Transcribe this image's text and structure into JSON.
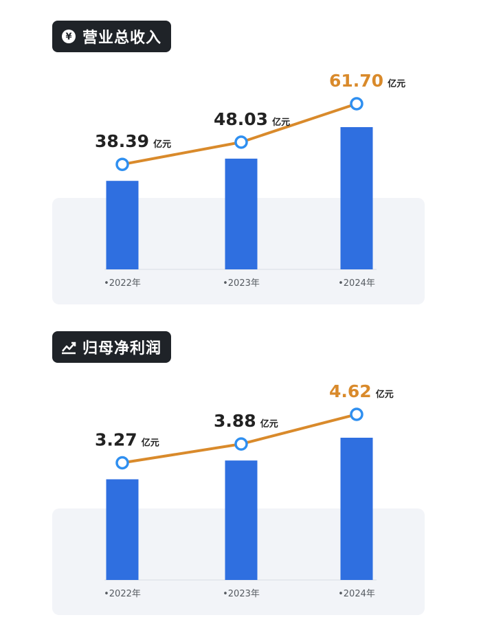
{
  "chart_data": [
    {
      "type": "bar",
      "title": "营业总收入",
      "title_icon": "yen-icon",
      "categories": [
        "2022年",
        "2023年",
        "2024年"
      ],
      "tick_labels": [
        "•2022年",
        "•2023年",
        "•2024年"
      ],
      "values": [
        38.39,
        48.03,
        61.7
      ],
      "value_labels": [
        "38.39",
        "48.03",
        "61.70"
      ],
      "unit": "亿元",
      "line_overlay": true,
      "colors": {
        "bar": "#2f6fe0",
        "line": "#d98a2b",
        "marker": "#2f8ff0",
        "highlight_label": "#d98a2b",
        "label": "#222222",
        "panel": "#f2f4f8"
      }
    },
    {
      "type": "bar",
      "title": "归母净利润",
      "title_icon": "trend-chart-icon",
      "categories": [
        "2022年",
        "2023年",
        "2024年"
      ],
      "tick_labels": [
        "•2022年",
        "•2023年",
        "•2024年"
      ],
      "values": [
        3.27,
        3.88,
        4.62
      ],
      "value_labels": [
        "3.27",
        "3.88",
        "4.62"
      ],
      "unit": "亿元",
      "line_overlay": true,
      "colors": {
        "bar": "#2f6fe0",
        "line": "#d98a2b",
        "marker": "#2f8ff0",
        "highlight_label": "#d98a2b",
        "label": "#222222",
        "panel": "#f2f4f8"
      }
    }
  ]
}
